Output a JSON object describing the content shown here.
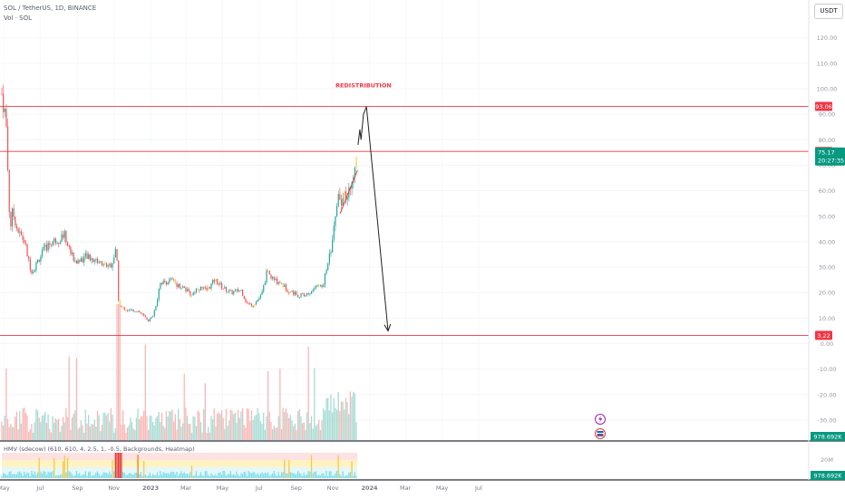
{
  "header": {
    "symbol_line": "SOL / TetherUS, 1D, BINANCE",
    "volume_line": "Vol · SOL",
    "currency_button": "USDT"
  },
  "indicator": {
    "label": "HMV (sdecow) (610, 610, 4, 2.5, 1, -0.5, Backgrounds, Heatmap)"
  },
  "colors": {
    "up": "#26a69a",
    "down": "#ef5350",
    "level_line": "#f23645",
    "current_price": "#089981",
    "volume_up": "#a7dcd4",
    "volume_down": "#f7b8b6",
    "heat_yellow": "#f7c948",
    "heat_orange": "#f57c00",
    "heat_red": "#e53935",
    "heat_cyan": "#80deea"
  },
  "chart_data": {
    "type": "candlestick",
    "x_ticks": [
      "May",
      "Jul",
      "Sep",
      "Nov",
      "2023",
      "Mar",
      "May",
      "Jul",
      "Sep",
      "Nov",
      "2024",
      "Mar",
      "May",
      "Jul"
    ],
    "y_ticks": [
      "120.00",
      "110.00",
      "100.00",
      "90.00",
      "80.00",
      "70.00",
      "60.00",
      "50.00",
      "40.00",
      "30.00",
      "20.00",
      "10.00",
      "0.00",
      "-10.00",
      "-20.00",
      "-30.00"
    ],
    "ylim": [
      -38,
      130
    ],
    "levels": [
      {
        "price": 93.06,
        "label": "93.06"
      },
      {
        "price": 75.42,
        "label": "75.42"
      },
      {
        "price": 3.22,
        "label": "3.22"
      }
    ],
    "current_price": {
      "value": "75.17",
      "countdown": "20:27:35"
    },
    "annotation": "REDISTRIBUTION",
    "volume_label": "978.692K",
    "indicator_tick": "20M",
    "indicator_value": "978.692K",
    "projection_path": [
      {
        "date": "2023-12-13",
        "price": 78
      },
      {
        "date": "2023-12-16",
        "price": 84
      },
      {
        "date": "2023-12-18",
        "price": 80
      },
      {
        "date": "2023-12-22",
        "price": 90
      },
      {
        "date": "2023-12-27",
        "price": 93
      },
      {
        "date": "2024-02-01",
        "price": 5
      }
    ],
    "series_anchors": [
      [
        "2022-04-28",
        98
      ],
      [
        "2022-05-05",
        88
      ],
      [
        "2022-05-10",
        55
      ],
      [
        "2022-05-12",
        45
      ],
      [
        "2022-05-16",
        52
      ],
      [
        "2022-05-25",
        44
      ],
      [
        "2022-06-05",
        40
      ],
      [
        "2022-06-13",
        31
      ],
      [
        "2022-06-18",
        28
      ],
      [
        "2022-06-28",
        33
      ],
      [
        "2022-07-08",
        37
      ],
      [
        "2022-07-20",
        40
      ],
      [
        "2022-08-02",
        41
      ],
      [
        "2022-08-10",
        43
      ],
      [
        "2022-08-20",
        36
      ],
      [
        "2022-08-30",
        32
      ],
      [
        "2022-09-15",
        34
      ],
      [
        "2022-09-30",
        33
      ],
      [
        "2022-10-15",
        31
      ],
      [
        "2022-10-28",
        31
      ],
      [
        "2022-11-05",
        37
      ],
      [
        "2022-11-09",
        15
      ],
      [
        "2022-11-14",
        14
      ],
      [
        "2022-11-25",
        13
      ],
      [
        "2022-12-10",
        13
      ],
      [
        "2022-12-29",
        9
      ],
      [
        "2023-01-05",
        11
      ],
      [
        "2023-01-12",
        17
      ],
      [
        "2023-01-16",
        24
      ],
      [
        "2023-01-25",
        24
      ],
      [
        "2023-02-05",
        25
      ],
      [
        "2023-02-15",
        23
      ],
      [
        "2023-02-25",
        22
      ],
      [
        "2023-03-10",
        19
      ],
      [
        "2023-03-20",
        22
      ],
      [
        "2023-04-05",
        21
      ],
      [
        "2023-04-18",
        25
      ],
      [
        "2023-05-01",
        22
      ],
      [
        "2023-05-15",
        20
      ],
      [
        "2023-06-01",
        21
      ],
      [
        "2023-06-10",
        16
      ],
      [
        "2023-06-20",
        15
      ],
      [
        "2023-07-05",
        19
      ],
      [
        "2023-07-14",
        28
      ],
      [
        "2023-07-25",
        25
      ],
      [
        "2023-08-05",
        24
      ],
      [
        "2023-08-18",
        21
      ],
      [
        "2023-09-05",
        19
      ],
      [
        "2023-09-15",
        19
      ],
      [
        "2023-09-25",
        20
      ],
      [
        "2023-10-05",
        23
      ],
      [
        "2023-10-15",
        22
      ],
      [
        "2023-10-22",
        30
      ],
      [
        "2023-10-31",
        40
      ],
      [
        "2023-11-10",
        60
      ],
      [
        "2023-11-14",
        56
      ],
      [
        "2023-11-20",
        58
      ],
      [
        "2023-11-28",
        60
      ],
      [
        "2023-12-05",
        68
      ],
      [
        "2023-12-12",
        75.17
      ]
    ]
  }
}
